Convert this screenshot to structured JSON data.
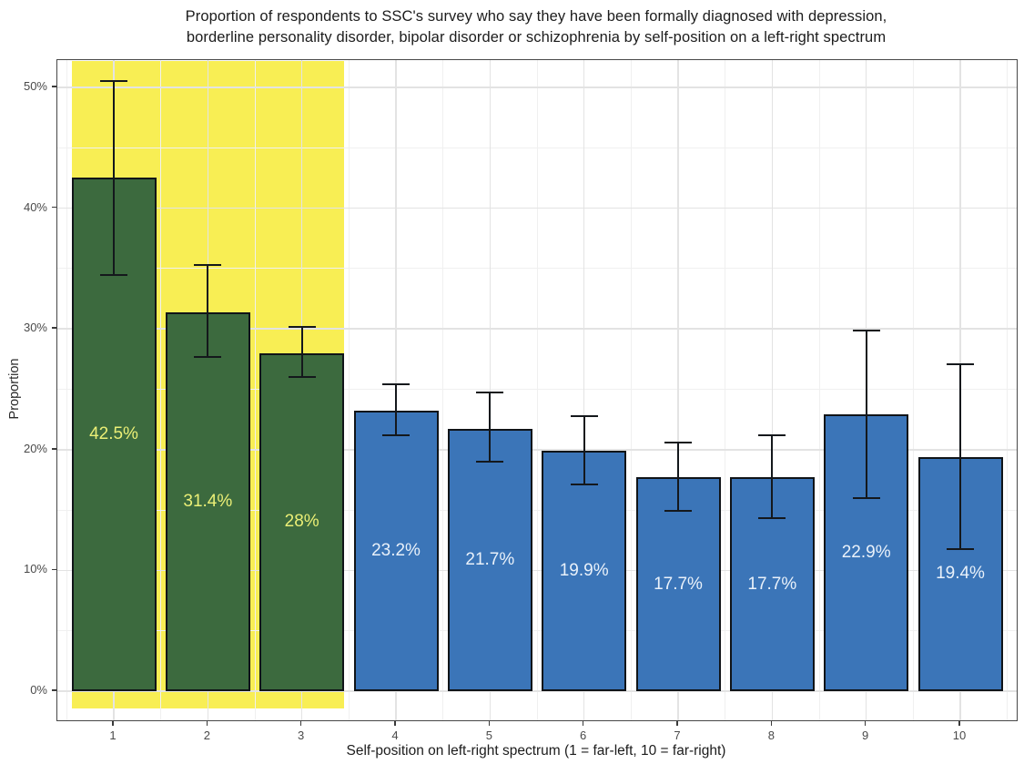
{
  "chart_data": {
    "type": "bar",
    "title_line1": "Proportion of respondents to SSC's survey who say they have been formally diagnosed with depression,",
    "title_line2": "borderline personality disorder, bipolar disorder or schizophrenia by self-position on a left-right spectrum",
    "xlabel": "Self-position on left-right spectrum (1 = far-left, 10 = far-right)",
    "ylabel": "Proportion",
    "categories": [
      "1",
      "2",
      "3",
      "4",
      "5",
      "6",
      "7",
      "8",
      "9",
      "10"
    ],
    "values": [
      42.5,
      31.4,
      28,
      23.2,
      21.7,
      19.9,
      17.7,
      17.7,
      22.9,
      19.4
    ],
    "bar_labels": [
      "42.5%",
      "31.4%",
      "28%",
      "23.2%",
      "21.7%",
      "19.9%",
      "17.7%",
      "17.7%",
      "22.9%",
      "19.4%"
    ],
    "error_low": [
      34.5,
      27.7,
      26.0,
      21.2,
      19.0,
      17.1,
      14.9,
      14.3,
      16.0,
      11.8
    ],
    "error_high": [
      50.5,
      35.3,
      30.2,
      25.4,
      24.7,
      22.8,
      20.6,
      21.2,
      29.9,
      27.1
    ],
    "bar_colors": [
      "#3c6a3e",
      "#3c6a3e",
      "#3c6a3e",
      "#3b75b8",
      "#3b75b8",
      "#3b75b8",
      "#3b75b8",
      "#3b75b8",
      "#3b75b8",
      "#3b75b8"
    ],
    "label_colors": [
      "#ebef76",
      "#ebef76",
      "#ebef76",
      "#e9f1fa",
      "#e9f1fa",
      "#e9f1fa",
      "#e9f1fa",
      "#e9f1fa",
      "#e9f1fa",
      "#e9f1fa"
    ],
    "y_ticks": [
      {
        "label": "0%",
        "value": 0
      },
      {
        "label": "10%",
        "value": 10
      },
      {
        "label": "20%",
        "value": 20
      },
      {
        "label": "30%",
        "value": 30
      },
      {
        "label": "40%",
        "value": 40
      },
      {
        "label": "50%",
        "value": 50
      }
    ],
    "y_minor_ticks": [
      5,
      15,
      25,
      35,
      45
    ],
    "ylim": [
      0,
      52.3
    ],
    "grid": "major+minor",
    "legend": "none",
    "highlight": {
      "from_category": 1,
      "to_category": 3,
      "color": "#f8ee54"
    },
    "colors": {
      "green_bar": "#3c6a3e",
      "blue_bar": "#3b75b8",
      "highlight_yellow": "#f8ee54",
      "green_bar_label": "#ebef76",
      "blue_bar_label": "#e9f1fa",
      "error_bar": "#14181c",
      "grid_major": "#e3e3e3",
      "grid_minor": "#f0f0f0",
      "panel_border": "#474747",
      "title_text": "#1c1c1c",
      "tick_text": "#4a4a4a"
    }
  }
}
